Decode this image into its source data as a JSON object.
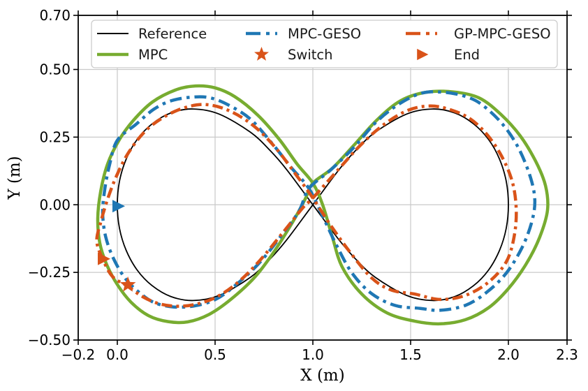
{
  "figure_title": "",
  "chart_data": {
    "type": "line",
    "title": "",
    "xlabel": "X (m)",
    "ylabel": "Y (m)",
    "xlim": [
      -0.2,
      2.3
    ],
    "ylim": [
      -0.5,
      0.7
    ],
    "grid": true,
    "grid_color": "#c9c9c9",
    "background": "#ffffff",
    "x_ticks": [
      -0.2,
      0.0,
      0.5,
      1.0,
      1.5,
      2.0,
      2.3
    ],
    "x_tick_labels": [
      "−0.2",
      "0.0",
      "0.5",
      "1.0",
      "1.5",
      "2.0",
      "2.3"
    ],
    "y_ticks": [
      0.7,
      0.5,
      0.25,
      0.0,
      -0.25,
      -0.5
    ],
    "y_tick_labels": [
      "0.70",
      "0.50",
      "0.25",
      "0.00",
      "−0.25",
      "−0.50"
    ],
    "legend": {
      "position": "upper center",
      "rows": 2,
      "columns": 3,
      "items": [
        {
          "label": "Reference",
          "sample": "line-solid",
          "color": "#000000",
          "width": 2
        },
        {
          "label": "MPC",
          "sample": "line-solid",
          "color": "#77ac30",
          "width": 4.5
        },
        {
          "label": "MPC-GESO",
          "sample": "line-dashdot",
          "color": "#1f77b4",
          "width": 4.5
        },
        {
          "label": "Switch",
          "sample": "star",
          "color": "#d95319",
          "width": 0
        },
        {
          "label": "GP-MPC-GESO",
          "sample": "line-dashdot",
          "color": "#d95319",
          "width": 4.5
        },
        {
          "label": "End",
          "sample": "triangle-right",
          "color": "#d95319",
          "width": 0
        }
      ]
    },
    "series": [
      {
        "name": "Reference",
        "color": "#000000",
        "style": "solid",
        "width": 1.8,
        "closed": true,
        "points": [
          [
            1.0,
            0.0
          ],
          [
            1.134,
            0.13
          ],
          [
            1.218,
            0.2
          ],
          [
            1.319,
            0.268
          ],
          [
            1.479,
            0.335
          ],
          [
            1.612,
            0.354
          ],
          [
            1.727,
            0.339
          ],
          [
            1.822,
            0.299
          ],
          [
            1.899,
            0.241
          ],
          [
            1.955,
            0.168
          ],
          [
            1.989,
            0.087
          ],
          [
            2.0,
            0.0
          ],
          [
            1.989,
            -0.087
          ],
          [
            1.955,
            -0.168
          ],
          [
            1.899,
            -0.241
          ],
          [
            1.822,
            -0.299
          ],
          [
            1.727,
            -0.339
          ],
          [
            1.612,
            -0.354
          ],
          [
            1.479,
            -0.335
          ],
          [
            1.319,
            -0.268
          ],
          [
            1.218,
            -0.2
          ],
          [
            1.134,
            -0.13
          ],
          [
            1.0,
            0.0
          ],
          [
            0.866,
            0.13
          ],
          [
            0.782,
            0.2
          ],
          [
            0.681,
            0.268
          ],
          [
            0.521,
            0.335
          ],
          [
            0.388,
            0.354
          ],
          [
            0.273,
            0.339
          ],
          [
            0.178,
            0.299
          ],
          [
            0.101,
            0.241
          ],
          [
            0.045,
            0.168
          ],
          [
            0.011,
            0.087
          ],
          [
            0.0,
            0.0
          ],
          [
            0.011,
            -0.087
          ],
          [
            0.045,
            -0.168
          ],
          [
            0.101,
            -0.241
          ],
          [
            0.178,
            -0.299
          ],
          [
            0.273,
            -0.339
          ],
          [
            0.388,
            -0.354
          ],
          [
            0.521,
            -0.335
          ],
          [
            0.681,
            -0.268
          ],
          [
            0.782,
            -0.2
          ],
          [
            0.866,
            -0.13
          ]
        ]
      },
      {
        "name": "MPC",
        "color": "#77ac30",
        "style": "solid",
        "width": 4.5,
        "closed": true,
        "points": [
          [
            1.0,
            0.08
          ],
          [
            1.1,
            0.135
          ],
          [
            1.21,
            0.22
          ],
          [
            1.33,
            0.315
          ],
          [
            1.45,
            0.385
          ],
          [
            1.58,
            0.416
          ],
          [
            1.72,
            0.417
          ],
          [
            1.85,
            0.395
          ],
          [
            1.96,
            0.335
          ],
          [
            2.06,
            0.255
          ],
          [
            2.14,
            0.16
          ],
          [
            2.19,
            0.07
          ],
          [
            2.2,
            -0.02
          ],
          [
            2.16,
            -0.12
          ],
          [
            2.09,
            -0.22
          ],
          [
            2.0,
            -0.31
          ],
          [
            1.9,
            -0.38
          ],
          [
            1.78,
            -0.425
          ],
          [
            1.65,
            -0.44
          ],
          [
            1.52,
            -0.43
          ],
          [
            1.38,
            -0.4
          ],
          [
            1.25,
            -0.33
          ],
          [
            1.15,
            -0.23
          ],
          [
            1.1,
            -0.12
          ],
          [
            1.05,
            0.0
          ],
          [
            1.0,
            0.08
          ],
          [
            0.92,
            0.15
          ],
          [
            0.83,
            0.24
          ],
          [
            0.72,
            0.33
          ],
          [
            0.6,
            0.4
          ],
          [
            0.5,
            0.432
          ],
          [
            0.4,
            0.439
          ],
          [
            0.3,
            0.425
          ],
          [
            0.18,
            0.38
          ],
          [
            0.08,
            0.31
          ],
          [
            0.01,
            0.24
          ],
          [
            -0.05,
            0.15
          ],
          [
            -0.085,
            0.05
          ],
          [
            -0.1,
            -0.05
          ],
          [
            -0.09,
            -0.14
          ],
          [
            -0.055,
            -0.22
          ],
          [
            0.0,
            -0.295
          ],
          [
            0.07,
            -0.36
          ],
          [
            0.16,
            -0.41
          ],
          [
            0.26,
            -0.432
          ],
          [
            0.36,
            -0.433
          ],
          [
            0.47,
            -0.405
          ],
          [
            0.58,
            -0.35
          ],
          [
            0.7,
            -0.27
          ],
          [
            0.8,
            -0.175
          ],
          [
            0.9,
            -0.06
          ],
          [
            0.96,
            0.02
          ]
        ]
      },
      {
        "name": "MPC-GESO",
        "color": "#1f77b4",
        "style": "dashdot",
        "width": 4.5,
        "closed": true,
        "points": [
          [
            0.98,
            0.06
          ],
          [
            1.09,
            0.128
          ],
          [
            1.21,
            0.212
          ],
          [
            1.32,
            0.303
          ],
          [
            1.44,
            0.372
          ],
          [
            1.56,
            0.413
          ],
          [
            1.68,
            0.415
          ],
          [
            1.79,
            0.398
          ],
          [
            1.87,
            0.367
          ],
          [
            1.97,
            0.298
          ],
          [
            2.05,
            0.212
          ],
          [
            2.11,
            0.108
          ],
          [
            2.135,
            0.02
          ],
          [
            2.12,
            -0.062
          ],
          [
            2.07,
            -0.158
          ],
          [
            1.99,
            -0.252
          ],
          [
            1.89,
            -0.323
          ],
          [
            1.78,
            -0.372
          ],
          [
            1.65,
            -0.39
          ],
          [
            1.55,
            -0.383
          ],
          [
            1.42,
            -0.372
          ],
          [
            1.3,
            -0.328
          ],
          [
            1.2,
            -0.252
          ],
          [
            1.12,
            -0.148
          ],
          [
            1.05,
            -0.042
          ],
          [
            0.98,
            0.06
          ],
          [
            0.89,
            0.137
          ],
          [
            0.79,
            0.228
          ],
          [
            0.68,
            0.317
          ],
          [
            0.57,
            0.368
          ],
          [
            0.47,
            0.396
          ],
          [
            0.37,
            0.397
          ],
          [
            0.27,
            0.383
          ],
          [
            0.185,
            0.352
          ],
          [
            0.095,
            0.297
          ],
          [
            0.0,
            0.238
          ],
          [
            -0.04,
            0.147
          ],
          [
            -0.065,
            0.053
          ],
          [
            -0.075,
            -0.03
          ],
          [
            -0.06,
            -0.117
          ],
          [
            -0.02,
            -0.198
          ],
          [
            0.04,
            -0.272
          ],
          [
            0.11,
            -0.323
          ],
          [
            0.19,
            -0.362
          ],
          [
            0.29,
            -0.378
          ],
          [
            0.4,
            -0.373
          ],
          [
            0.51,
            -0.347
          ],
          [
            0.62,
            -0.288
          ],
          [
            0.73,
            -0.212
          ],
          [
            0.84,
            -0.113
          ],
          [
            0.93,
            -0.022
          ]
        ]
      },
      {
        "name": "GP-MPC-GESO",
        "color": "#d95319",
        "style": "dashdot",
        "width": 4.5,
        "closed": true,
        "points": [
          [
            1.0,
            0.025
          ],
          [
            1.13,
            0.13
          ],
          [
            1.25,
            0.225
          ],
          [
            1.37,
            0.3
          ],
          [
            1.49,
            0.35
          ],
          [
            1.6,
            0.365
          ],
          [
            1.7,
            0.352
          ],
          [
            1.8,
            0.32
          ],
          [
            1.89,
            0.26
          ],
          [
            1.965,
            0.18
          ],
          [
            2.02,
            0.085
          ],
          [
            2.04,
            -0.015
          ],
          [
            2.03,
            -0.115
          ],
          [
            1.99,
            -0.21
          ],
          [
            1.9,
            -0.285
          ],
          [
            1.78,
            -0.335
          ],
          [
            1.65,
            -0.35
          ],
          [
            1.52,
            -0.33
          ],
          [
            1.4,
            -0.315
          ],
          [
            1.3,
            -0.27
          ],
          [
            1.19,
            -0.175
          ],
          [
            1.09,
            -0.075
          ],
          [
            1.0,
            0.025
          ],
          [
            0.92,
            0.105
          ],
          [
            0.81,
            0.21
          ],
          [
            0.7,
            0.29
          ],
          [
            0.58,
            0.345
          ],
          [
            0.46,
            0.37
          ],
          [
            0.35,
            0.36
          ],
          [
            0.24,
            0.325
          ],
          [
            0.14,
            0.27
          ],
          [
            0.055,
            0.19
          ],
          [
            -0.005,
            0.105
          ],
          [
            -0.05,
            0.02
          ],
          [
            -0.085,
            -0.065
          ],
          [
            -0.105,
            -0.135
          ],
          [
            -0.075,
            -0.2
          ],
          [
            -0.025,
            -0.265
          ],
          [
            0.05,
            -0.3
          ],
          [
            0.13,
            -0.34
          ],
          [
            0.21,
            -0.365
          ],
          [
            0.3,
            -0.375
          ],
          [
            0.4,
            -0.368
          ],
          [
            0.51,
            -0.34
          ],
          [
            0.62,
            -0.285
          ],
          [
            0.73,
            -0.205
          ],
          [
            0.85,
            -0.1
          ],
          [
            0.95,
            -0.01
          ]
        ]
      }
    ],
    "markers": [
      {
        "name": "switch-marker",
        "label": "Switch",
        "shape": "star",
        "color": "#d95319",
        "x": 0.054,
        "y": -0.296,
        "size": 12
      },
      {
        "name": "end-marker-gp",
        "label": "End",
        "shape": "triangle-right",
        "color": "#d95319",
        "x": -0.075,
        "y": -0.2,
        "size": 10
      },
      {
        "name": "end-marker-geso",
        "label": "End",
        "shape": "triangle-right",
        "color": "#1f77b4",
        "x": 0.0,
        "y": -0.005,
        "size": 10
      }
    ]
  }
}
